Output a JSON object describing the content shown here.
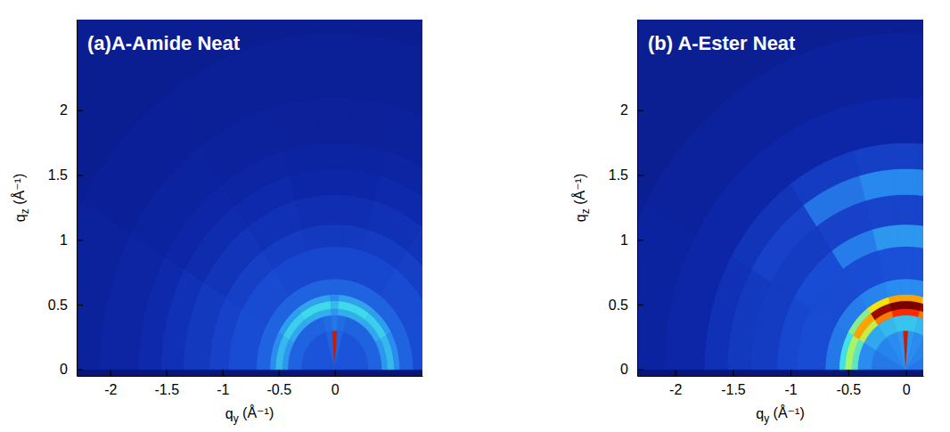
{
  "chart_data": [
    {
      "type": "heatmap",
      "title": "(a)A-Amide Neat",
      "x_label": "qy (Å⁻¹)",
      "y_label": "qz (Å⁻¹)",
      "xlim": [
        -2.3,
        0.78
      ],
      "ylim": [
        -0.05,
        2.7
      ],
      "xticks": [
        -2,
        -1.5,
        -1,
        -0.5,
        0
      ],
      "yticks": [
        0,
        0.5,
        1,
        1.5,
        2
      ],
      "q_bins": [
        0,
        0.3,
        0.42,
        0.47,
        0.53,
        0.58,
        0.7,
        0.95,
        1.12,
        1.35,
        1.55,
        1.75,
        2.1,
        2.6,
        3.6
      ],
      "chi_bins": [
        -90,
        -60,
        -35,
        -15,
        -4,
        4,
        15,
        35,
        60,
        90
      ],
      "color_range": [
        0,
        10
      ],
      "cells": [
        [
          3.6,
          4,
          5.2,
          5.8,
          5,
          4,
          3.4,
          3,
          2.7,
          2.4,
          2.1,
          1.8,
          1.5,
          1.2
        ],
        [
          3.6,
          4,
          5.5,
          6.2,
          5.3,
          4,
          3.3,
          2.9,
          2.5,
          2.2,
          1.9,
          1.6,
          1.3,
          1.0
        ],
        [
          3.6,
          4,
          5.6,
          6.4,
          5.4,
          4,
          3.2,
          2.8,
          2.4,
          2.1,
          1.8,
          1.5,
          1.2,
          1.0
        ],
        [
          4,
          4.2,
          5.6,
          6.4,
          5.4,
          4,
          3.2,
          2.7,
          2.3,
          2,
          1.7,
          1.4,
          1.2,
          1.0
        ],
        [
          9.5,
          4.5,
          5.2,
          5.8,
          5,
          4,
          3.2,
          2.7,
          2.3,
          2,
          1.7,
          1.4,
          1.2,
          1.0
        ],
        [
          4,
          4.2,
          5.6,
          6.4,
          5.4,
          4,
          3.2,
          2.7,
          2.3,
          2,
          1.7,
          1.4,
          1.2,
          1.0
        ],
        [
          3.6,
          4,
          5.6,
          6.4,
          5.4,
          4,
          3.2,
          2.8,
          2.4,
          2.1,
          1.8,
          1.5,
          1.2,
          1.0
        ],
        [
          3.6,
          4,
          5.5,
          6.2,
          5.3,
          4,
          3.3,
          2.9,
          2.5,
          2.2,
          1.9,
          1.6,
          1.3,
          1.0
        ],
        [
          3.6,
          4,
          5.2,
          5.8,
          5,
          4,
          3.4,
          3,
          2.7,
          2.4,
          2.1,
          1.8,
          1.5,
          1.2
        ]
      ]
    },
    {
      "type": "heatmap",
      "title": "(b) A-Ester Neat",
      "x_label": "qy (Å⁻¹)",
      "y_label": "qz (Å⁻¹)",
      "xlim": [
        -2.33,
        0.15
      ],
      "ylim": [
        -0.05,
        2.7
      ],
      "xticks": [
        -2,
        -1.5,
        -1,
        -0.5,
        0
      ],
      "yticks": [
        0,
        0.5,
        1,
        1.5,
        2
      ],
      "q_bins": [
        0,
        0.3,
        0.42,
        0.47,
        0.53,
        0.58,
        0.7,
        0.95,
        1.12,
        1.35,
        1.55,
        1.75,
        2.1,
        2.6,
        3.6
      ],
      "chi_bins": [
        -90,
        -60,
        -35,
        -15,
        -4,
        4,
        15,
        35,
        60,
        90
      ],
      "color_range": [
        0,
        10
      ],
      "cells": [
        [
          4.5,
          5,
          6.8,
          7.5,
          6.5,
          4.5,
          3.4,
          3.2,
          2.8,
          2.7,
          2.4,
          2.0,
          1.6,
          1.2
        ],
        [
          4.8,
          5.5,
          7.8,
          8.6,
          7.2,
          4.6,
          3.3,
          3.4,
          2.8,
          3.0,
          2.5,
          2.0,
          1.5,
          1.1
        ],
        [
          5,
          5.8,
          8.8,
          9.8,
          8.2,
          4.8,
          3.4,
          4.6,
          3.0,
          4.4,
          2.8,
          2.0,
          1.5,
          1.1
        ],
        [
          5.2,
          6,
          9.2,
          10,
          8.6,
          5,
          3.5,
          5.2,
          3.1,
          4.9,
          2.9,
          2.0,
          1.5,
          1.1
        ],
        [
          9.5,
          6,
          9.2,
          10,
          8.6,
          5,
          3.5,
          5.2,
          3.1,
          4.9,
          2.9,
          2.0,
          1.5,
          1.1
        ],
        [
          5.2,
          6,
          9.2,
          10,
          8.6,
          5,
          3.5,
          5.2,
          3.1,
          4.9,
          2.9,
          2.0,
          1.5,
          1.1
        ],
        [
          5,
          5.8,
          8.8,
          9.8,
          8.2,
          4.8,
          3.4,
          4.6,
          3.0,
          4.4,
          2.8,
          2.0,
          1.5,
          1.1
        ],
        [
          4.8,
          5.5,
          7.8,
          8.6,
          7.2,
          4.6,
          3.3,
          3.4,
          2.8,
          3.0,
          2.5,
          2.0,
          1.5,
          1.1
        ],
        [
          4.5,
          5,
          6.8,
          7.5,
          6.5,
          4.5,
          3.4,
          3.2,
          2.8,
          2.7,
          2.4,
          2.0,
          1.6,
          1.2
        ]
      ]
    }
  ]
}
